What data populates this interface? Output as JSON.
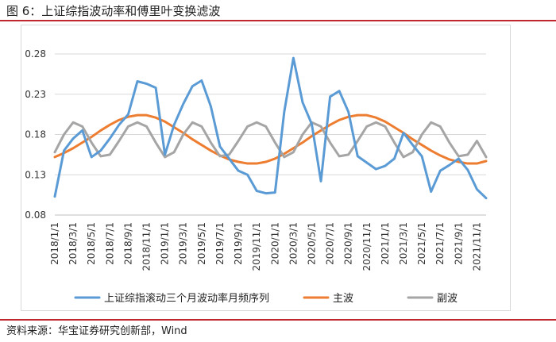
{
  "figure": {
    "title": "图 6：上证综指波动率和傅里叶变换滤波",
    "source": "资料来源：华宝证券研究创新部，Wind"
  },
  "colors": {
    "accent_rule": "#c0262d",
    "series": [
      "#5b9bd5",
      "#ed7d31",
      "#a5a5a5"
    ],
    "grid": "#d9d9d9"
  },
  "chart_data": {
    "type": "line",
    "title": "",
    "xlabel": "",
    "ylabel": "",
    "ylim": [
      0.08,
      0.28
    ],
    "yticks": [
      0.08,
      0.13,
      0.18,
      0.23,
      0.28
    ],
    "ytick_labels": [
      "0.08",
      "0.13",
      "0.18",
      "0.23",
      "0.28"
    ],
    "grid": "horizontal",
    "legend_position": "bottom",
    "x": [
      "2018/1/1",
      "2018/2/1",
      "2018/3/1",
      "2018/4/1",
      "2018/5/1",
      "2018/6/1",
      "2018/7/1",
      "2018/8/1",
      "2018/9/1",
      "2018/10/1",
      "2018/11/1",
      "2018/12/1",
      "2019/1/1",
      "2019/2/1",
      "2019/3/1",
      "2019/4/1",
      "2019/5/1",
      "2019/6/1",
      "2019/7/1",
      "2019/8/1",
      "2019/9/1",
      "2019/10/1",
      "2019/11/1",
      "2019/12/1",
      "2020/1/1",
      "2020/2/1",
      "2020/3/1",
      "2020/4/1",
      "2020/5/1",
      "2020/6/1",
      "2020/7/1",
      "2020/8/1",
      "2020/9/1",
      "2020/10/1",
      "2020/11/1",
      "2020/12/1",
      "2021/1/1",
      "2021/2/1",
      "2021/3/1",
      "2021/4/1",
      "2021/5/1",
      "2021/6/1",
      "2021/7/1",
      "2021/8/1",
      "2021/9/1",
      "2021/10/1",
      "2021/11/1",
      "2021/12/1"
    ],
    "x_tick_labels": [
      "2018/1/1",
      "2018/3/1",
      "2018/5/1",
      "2018/7/1",
      "2018/9/1",
      "2018/11/1",
      "2019/1/1",
      "2019/3/1",
      "2019/5/1",
      "2019/7/1",
      "2019/9/1",
      "2019/11/1",
      "2020/1/1",
      "2020/3/1",
      "2020/5/1",
      "2020/7/1",
      "2020/9/1",
      "2020/11/1",
      "2021/1/1",
      "2021/3/1",
      "2021/5/1",
      "2021/7/1",
      "2021/9/1",
      "2021/11/1"
    ],
    "series": [
      {
        "name": "上证综指滚动三个月波动率月频序列",
        "values": [
          0.103,
          0.16,
          0.175,
          0.185,
          0.152,
          0.16,
          0.175,
          0.192,
          0.205,
          0.246,
          0.243,
          0.238,
          0.155,
          0.192,
          0.218,
          0.24,
          0.247,
          0.215,
          0.165,
          0.15,
          0.135,
          0.13,
          0.11,
          0.107,
          0.108,
          0.208,
          0.275,
          0.22,
          0.193,
          0.122,
          0.227,
          0.234,
          0.208,
          0.153,
          0.145,
          0.137,
          0.141,
          0.15,
          0.182,
          0.167,
          0.153,
          0.109,
          0.135,
          0.142,
          0.15,
          0.136,
          0.112,
          0.101
        ]
      },
      {
        "name": "主波",
        "values": [
          0.152,
          0.157,
          0.163,
          0.17,
          0.177,
          0.185,
          0.192,
          0.198,
          0.202,
          0.204,
          0.204,
          0.201,
          0.196,
          0.189,
          0.182,
          0.174,
          0.167,
          0.16,
          0.154,
          0.149,
          0.146,
          0.144,
          0.144,
          0.146,
          0.15,
          0.156,
          0.163,
          0.17,
          0.178,
          0.185,
          0.192,
          0.198,
          0.202,
          0.204,
          0.204,
          0.201,
          0.196,
          0.189,
          0.182,
          0.174,
          0.167,
          0.16,
          0.154,
          0.149,
          0.146,
          0.144,
          0.144,
          0.147
        ]
      },
      {
        "name": "副波",
        "values": [
          0.158,
          0.18,
          0.195,
          0.19,
          0.17,
          0.153,
          0.155,
          0.172,
          0.19,
          0.195,
          0.19,
          0.17,
          0.152,
          0.158,
          0.18,
          0.195,
          0.19,
          0.17,
          0.153,
          0.155,
          0.172,
          0.19,
          0.195,
          0.19,
          0.17,
          0.152,
          0.158,
          0.18,
          0.195,
          0.19,
          0.17,
          0.153,
          0.155,
          0.172,
          0.19,
          0.195,
          0.19,
          0.17,
          0.152,
          0.158,
          0.18,
          0.195,
          0.19,
          0.17,
          0.153,
          0.155,
          0.172,
          0.152
        ]
      }
    ]
  }
}
